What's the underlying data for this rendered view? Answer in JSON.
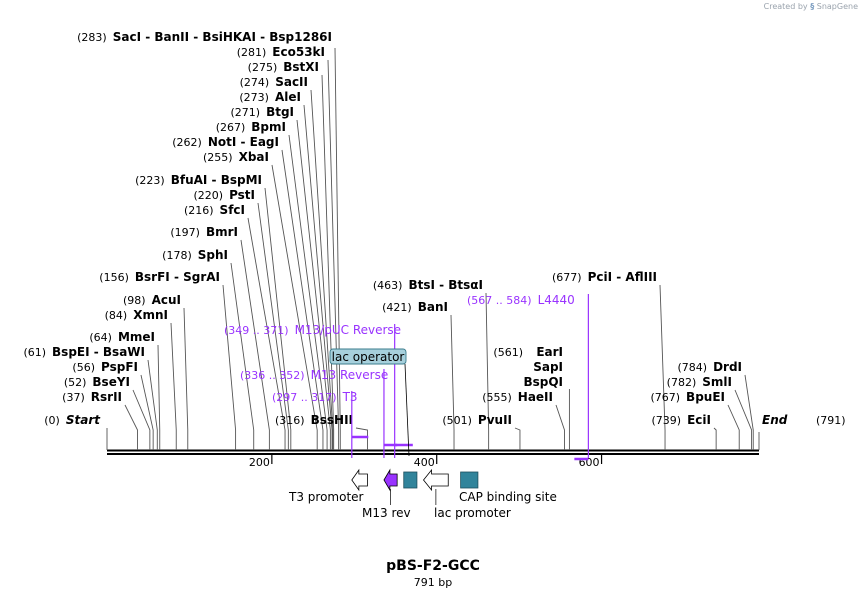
{
  "watermark": {
    "created_by": "Created by",
    "brand": "SnapGene"
  },
  "plasmid": {
    "name": "pBS-F2-GCC",
    "length_label": "791 bp",
    "length_bp": 791
  },
  "axis": {
    "ticks": [
      200,
      400,
      600
    ]
  },
  "sites": [
    {
      "pos": 0,
      "pos_label": "(0)",
      "names": [
        "Start"
      ],
      "italic": true
    },
    {
      "pos": 37,
      "pos_label": "(37)",
      "names": [
        "RsrII"
      ]
    },
    {
      "pos": 52,
      "pos_label": "(52)",
      "names": [
        "BseYI"
      ]
    },
    {
      "pos": 56,
      "pos_label": "(56)",
      "names": [
        "PspFI"
      ]
    },
    {
      "pos": 61,
      "pos_label": "(61)",
      "names": [
        "BspEI",
        "BsaWI"
      ]
    },
    {
      "pos": 64,
      "pos_label": "(64)",
      "names": [
        "MmeI"
      ]
    },
    {
      "pos": 84,
      "pos_label": "(84)",
      "names": [
        "XmnI"
      ]
    },
    {
      "pos": 98,
      "pos_label": "(98)",
      "names": [
        "AcuI"
      ]
    },
    {
      "pos": 156,
      "pos_label": "(156)",
      "names": [
        "BsrFI",
        "SgrAI"
      ]
    },
    {
      "pos": 178,
      "pos_label": "(178)",
      "names": [
        "SphI"
      ]
    },
    {
      "pos": 197,
      "pos_label": "(197)",
      "names": [
        "BmrI"
      ]
    },
    {
      "pos": 216,
      "pos_label": "(216)",
      "names": [
        "SfcI"
      ]
    },
    {
      "pos": 220,
      "pos_label": "(220)",
      "names": [
        "PstI"
      ]
    },
    {
      "pos": 223,
      "pos_label": "(223)",
      "names": [
        "BfuAI",
        "BspMI"
      ]
    },
    {
      "pos": 255,
      "pos_label": "(255)",
      "names": [
        "XbaI"
      ]
    },
    {
      "pos": 262,
      "pos_label": "(262)",
      "names": [
        "NotI",
        "EagI"
      ]
    },
    {
      "pos": 267,
      "pos_label": "(267)",
      "names": [
        "BpmI"
      ]
    },
    {
      "pos": 271,
      "pos_label": "(271)",
      "names": [
        "BtgI"
      ]
    },
    {
      "pos": 273,
      "pos_label": "(273)",
      "names": [
        "AleI"
      ]
    },
    {
      "pos": 274,
      "pos_label": "(274)",
      "names": [
        "SacII"
      ]
    },
    {
      "pos": 275,
      "pos_label": "(275)",
      "names": [
        "BstXI"
      ]
    },
    {
      "pos": 281,
      "pos_label": "(281)",
      "names": [
        "Eco53kI"
      ]
    },
    {
      "pos": 283,
      "pos_label": "(283)",
      "names": [
        "SacI",
        "BanII",
        "BsiHKAI",
        "Bsp1286I"
      ]
    },
    {
      "pos": 316,
      "pos_label": "(316)",
      "names": [
        "BssHII"
      ]
    },
    {
      "pos": 421,
      "pos_label": "(421)",
      "names": [
        "BanI"
      ]
    },
    {
      "pos": 463,
      "pos_label": "(463)",
      "names": [
        "BtsI",
        "BtsαI"
      ]
    },
    {
      "pos": 501,
      "pos_label": "(501)",
      "names": [
        "PvuII"
      ]
    },
    {
      "pos": 555,
      "pos_label": "(555)",
      "names": [
        "HaeII"
      ]
    },
    {
      "pos": 561,
      "pos_label": "(561)",
      "names": [
        "EarI",
        "SapI",
        "BspQI"
      ],
      "stacked": true
    },
    {
      "pos": 677,
      "pos_label": "(677)",
      "names": [
        "PciI",
        "AflIII"
      ]
    },
    {
      "pos": 739,
      "pos_label": "(739)",
      "names": [
        "EciI"
      ]
    },
    {
      "pos": 767,
      "pos_label": "(767)",
      "names": [
        "BpuEI"
      ]
    },
    {
      "pos": 782,
      "pos_label": "(782)",
      "names": [
        "SmlI"
      ]
    },
    {
      "pos": 784,
      "pos_label": "(784)",
      "names": [
        "DrdI"
      ]
    },
    {
      "pos": 791,
      "pos_label": "(791)",
      "names": [
        "End"
      ],
      "italic": true,
      "right": true
    }
  ],
  "primers": [
    {
      "range": "(297 .. 317)",
      "name": "T3",
      "start": 297,
      "end": 317
    },
    {
      "range": "(336 .. 352)",
      "name": "M13 Reverse",
      "start": 336,
      "end": 352
    },
    {
      "range": "(349 .. 371)",
      "name": "M13/pUC Reverse",
      "start": 349,
      "end": 371
    },
    {
      "range": "(567 .. 584)",
      "name": "L4440",
      "start": 567,
      "end": 584
    }
  ],
  "features": [
    {
      "name": "T3 promoter",
      "start": 297,
      "end": 316,
      "kind": "arrow-left",
      "fill": "#ffffff"
    },
    {
      "name": "M13 rev",
      "start": 336,
      "end": 352,
      "kind": "arrow-left",
      "fill": "#9933ff"
    },
    {
      "name": "lac operator",
      "start": 360,
      "end": 376,
      "kind": "box",
      "fill": "#31849b",
      "callout": true
    },
    {
      "name": "lac promoter",
      "start": 384,
      "end": 414,
      "kind": "arrow-left",
      "fill": "#ffffff"
    },
    {
      "name": "CAP binding site",
      "start": 429,
      "end": 450,
      "kind": "box",
      "fill": "#31849b"
    }
  ],
  "colors": {
    "primer": "#9933ff",
    "feature_box": "#31849b",
    "callout": "#a7d0dc",
    "backbone": "#000000",
    "site_line": "#555555"
  }
}
